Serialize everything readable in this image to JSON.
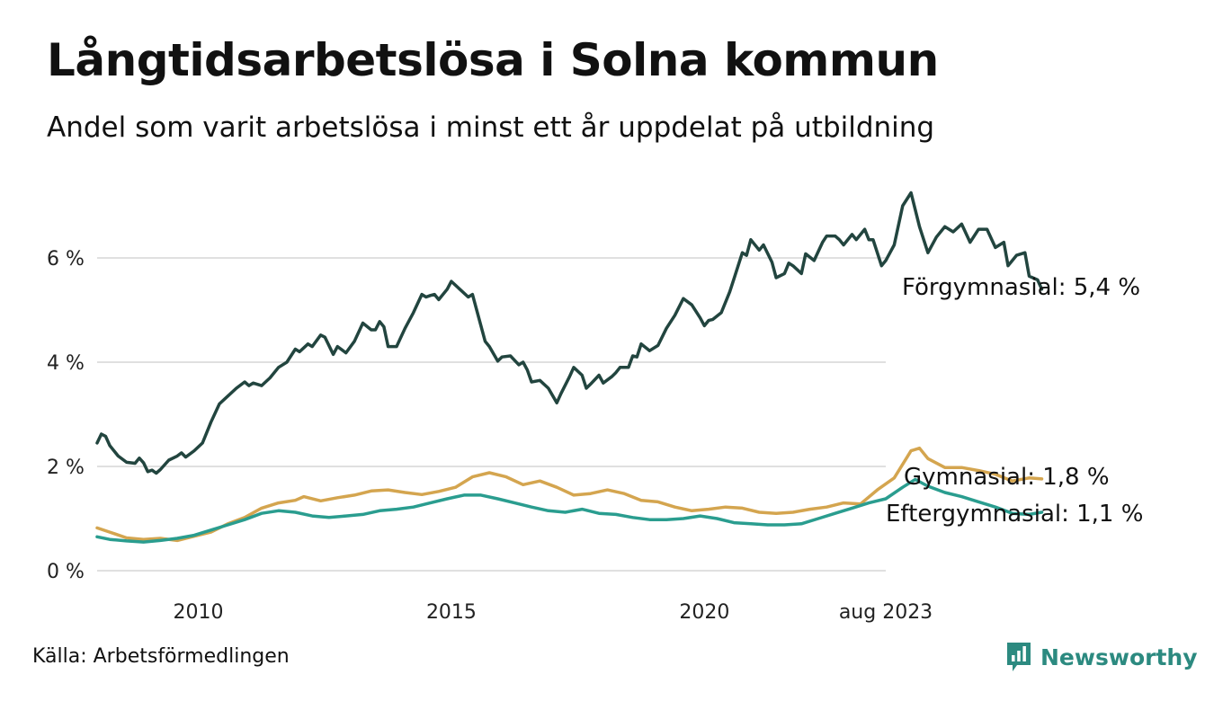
{
  "header": {
    "title": "Långtidsarbetslösa i Solna kommun",
    "subtitle": "Andel som varit arbetslösa i minst ett år uppdelat på utbildning"
  },
  "footer": {
    "source": "Källa: Arbetsförmedlingen",
    "brand": "Newsworthy"
  },
  "icons": {
    "brand": "newsworthy-logo-icon"
  },
  "chart_data": {
    "type": "line",
    "x_start": "2008-01",
    "x_end": "2023-08",
    "ylim": [
      0,
      7.5
    ],
    "y_ticks": [
      {
        "value": 0,
        "label": "0 %"
      },
      {
        "value": 2,
        "label": "2 %"
      },
      {
        "value": 4,
        "label": "4 %"
      },
      {
        "value": 6,
        "label": "6 %"
      }
    ],
    "x_ticks": [
      {
        "date": "2010-01",
        "label": "2010"
      },
      {
        "date": "2015-01",
        "label": "2015"
      },
      {
        "date": "2020-01",
        "label": "2020"
      },
      {
        "date": "2023-08",
        "label": "aug 2023"
      }
    ],
    "grid": "horizontal",
    "legend": "end-of-line labels",
    "series": [
      {
        "name": "Förgymnasial",
        "end_label": "Förgymnasial: 5,4 %",
        "color": "#22453f",
        "points": [
          [
            "2008-01",
            2.45
          ],
          [
            "2008-02",
            2.62
          ],
          [
            "2008-03",
            2.58
          ],
          [
            "2008-04",
            2.4
          ],
          [
            "2008-06",
            2.2
          ],
          [
            "2008-08",
            2.08
          ],
          [
            "2008-10",
            2.06
          ],
          [
            "2008-11",
            2.16
          ],
          [
            "2008-12",
            2.07
          ],
          [
            "2009-01",
            1.9
          ],
          [
            "2009-02",
            1.93
          ],
          [
            "2009-03",
            1.87
          ],
          [
            "2009-04",
            1.94
          ],
          [
            "2009-06",
            2.12
          ],
          [
            "2009-08",
            2.2
          ],
          [
            "2009-09",
            2.26
          ],
          [
            "2009-10",
            2.18
          ],
          [
            "2009-12",
            2.3
          ],
          [
            "2010-02",
            2.45
          ],
          [
            "2010-04",
            2.85
          ],
          [
            "2010-06",
            3.2
          ],
          [
            "2010-08",
            3.35
          ],
          [
            "2010-10",
            3.5
          ],
          [
            "2010-12",
            3.62
          ],
          [
            "2011-01",
            3.55
          ],
          [
            "2011-02",
            3.6
          ],
          [
            "2011-04",
            3.55
          ],
          [
            "2011-06",
            3.7
          ],
          [
            "2011-08",
            3.9
          ],
          [
            "2011-10",
            4.0
          ],
          [
            "2011-12",
            4.25
          ],
          [
            "2012-01",
            4.2
          ],
          [
            "2012-03",
            4.35
          ],
          [
            "2012-04",
            4.3
          ],
          [
            "2012-06",
            4.52
          ],
          [
            "2012-07",
            4.48
          ],
          [
            "2012-09",
            4.15
          ],
          [
            "2012-10",
            4.3
          ],
          [
            "2012-12",
            4.18
          ],
          [
            "2013-02",
            4.4
          ],
          [
            "2013-04",
            4.75
          ],
          [
            "2013-06",
            4.62
          ],
          [
            "2013-07",
            4.62
          ],
          [
            "2013-08",
            4.78
          ],
          [
            "2013-09",
            4.68
          ],
          [
            "2013-10",
            4.3
          ],
          [
            "2013-12",
            4.3
          ],
          [
            "2014-02",
            4.65
          ],
          [
            "2014-04",
            4.95
          ],
          [
            "2014-06",
            5.3
          ],
          [
            "2014-07",
            5.25
          ],
          [
            "2014-08",
            5.28
          ],
          [
            "2014-09",
            5.3
          ],
          [
            "2014-10",
            5.2
          ],
          [
            "2014-12",
            5.4
          ],
          [
            "2015-01",
            5.55
          ],
          [
            "2015-03",
            5.4
          ],
          [
            "2015-05",
            5.25
          ],
          [
            "2015-06",
            5.3
          ],
          [
            "2015-07",
            5.0
          ],
          [
            "2015-09",
            4.4
          ],
          [
            "2015-10",
            4.3
          ],
          [
            "2015-12",
            4.02
          ],
          [
            "2016-01",
            4.1
          ],
          [
            "2016-03",
            4.12
          ],
          [
            "2016-05",
            3.95
          ],
          [
            "2016-06",
            4.0
          ],
          [
            "2016-07",
            3.85
          ],
          [
            "2016-08",
            3.62
          ],
          [
            "2016-10",
            3.65
          ],
          [
            "2016-12",
            3.5
          ],
          [
            "2017-02",
            3.22
          ],
          [
            "2017-03",
            3.4
          ],
          [
            "2017-05",
            3.72
          ],
          [
            "2017-06",
            3.9
          ],
          [
            "2017-08",
            3.75
          ],
          [
            "2017-09",
            3.5
          ],
          [
            "2017-10",
            3.58
          ],
          [
            "2017-12",
            3.75
          ],
          [
            "2018-01",
            3.6
          ],
          [
            "2018-03",
            3.72
          ],
          [
            "2018-04",
            3.8
          ],
          [
            "2018-05",
            3.9
          ],
          [
            "2018-07",
            3.9
          ],
          [
            "2018-08",
            4.12
          ],
          [
            "2018-09",
            4.1
          ],
          [
            "2018-10",
            4.35
          ],
          [
            "2018-12",
            4.22
          ],
          [
            "2019-02",
            4.32
          ],
          [
            "2019-04",
            4.65
          ],
          [
            "2019-06",
            4.9
          ],
          [
            "2019-08",
            5.22
          ],
          [
            "2019-10",
            5.1
          ],
          [
            "2019-12",
            4.85
          ],
          [
            "2020-01",
            4.7
          ],
          [
            "2020-02",
            4.8
          ],
          [
            "2020-03",
            4.82
          ],
          [
            "2020-05",
            4.95
          ],
          [
            "2020-07",
            5.35
          ],
          [
            "2020-08",
            5.6
          ],
          [
            "2020-10",
            6.1
          ],
          [
            "2020-11",
            6.05
          ],
          [
            "2020-12",
            6.35
          ],
          [
            "2021-02",
            6.15
          ],
          [
            "2021-03",
            6.25
          ],
          [
            "2021-05",
            5.92
          ],
          [
            "2021-06",
            5.62
          ],
          [
            "2021-08",
            5.7
          ],
          [
            "2021-09",
            5.9
          ],
          [
            "2021-10",
            5.85
          ],
          [
            "2021-12",
            5.7
          ],
          [
            "2022-01",
            6.08
          ],
          [
            "2022-03",
            5.95
          ],
          [
            "2022-05",
            6.3
          ],
          [
            "2022-06",
            6.42
          ],
          [
            "2022-08",
            6.42
          ],
          [
            "2022-09",
            6.35
          ],
          [
            "2022-10",
            6.25
          ],
          [
            "2022-12",
            6.45
          ],
          [
            "2023-01",
            6.35
          ],
          [
            "2023-03",
            6.55
          ],
          [
            "2023-04",
            6.35
          ],
          [
            "2023-05",
            6.35
          ],
          [
            "2023-06",
            6.1
          ],
          [
            "2023-07",
            5.85
          ],
          [
            "2023-08",
            5.95
          ],
          [
            "2023-10",
            6.25
          ],
          [
            "2023-12",
            7.0
          ],
          [
            "2024-02",
            7.25
          ],
          [
            "2024-04",
            6.6
          ],
          [
            "2024-06",
            6.1
          ],
          [
            "2024-08",
            6.4
          ],
          [
            "2024-10",
            6.6
          ],
          [
            "2024-12",
            6.5
          ],
          [
            "2025-02",
            6.65
          ],
          [
            "2025-04",
            6.3
          ],
          [
            "2025-06",
            6.55
          ],
          [
            "2025-08",
            6.55
          ],
          [
            "2025-10",
            6.2
          ],
          [
            "2025-12",
            6.3
          ],
          [
            "2026-01",
            5.85
          ],
          [
            "2026-03",
            6.05
          ],
          [
            "2026-05",
            6.1
          ],
          [
            "2026-06",
            5.65
          ],
          [
            "2026-08",
            5.58
          ],
          [
            "2026-09",
            5.4
          ]
        ]
      },
      {
        "name": "Gymnasial",
        "end_label": "Gymnasial: 1,8 %",
        "color": "#d4a54f",
        "points": [
          [
            "2008-01",
            0.82
          ],
          [
            "2008-04",
            0.74
          ],
          [
            "2008-08",
            0.63
          ],
          [
            "2008-12",
            0.6
          ],
          [
            "2009-04",
            0.62
          ],
          [
            "2009-08",
            0.58
          ],
          [
            "2009-12",
            0.66
          ],
          [
            "2010-04",
            0.74
          ],
          [
            "2010-08",
            0.9
          ],
          [
            "2010-12",
            1.02
          ],
          [
            "2011-04",
            1.2
          ],
          [
            "2011-08",
            1.3
          ],
          [
            "2011-12",
            1.35
          ],
          [
            "2012-02",
            1.42
          ],
          [
            "2012-06",
            1.34
          ],
          [
            "2012-10",
            1.4
          ],
          [
            "2013-02",
            1.45
          ],
          [
            "2013-06",
            1.53
          ],
          [
            "2013-10",
            1.55
          ],
          [
            "2014-02",
            1.5
          ],
          [
            "2014-06",
            1.46
          ],
          [
            "2014-10",
            1.52
          ],
          [
            "2015-02",
            1.6
          ],
          [
            "2015-06",
            1.8
          ],
          [
            "2015-10",
            1.88
          ],
          [
            "2016-02",
            1.8
          ],
          [
            "2016-06",
            1.65
          ],
          [
            "2016-10",
            1.72
          ],
          [
            "2017-02",
            1.6
          ],
          [
            "2017-06",
            1.45
          ],
          [
            "2017-10",
            1.48
          ],
          [
            "2018-02",
            1.55
          ],
          [
            "2018-06",
            1.48
          ],
          [
            "2018-10",
            1.35
          ],
          [
            "2019-02",
            1.32
          ],
          [
            "2019-06",
            1.22
          ],
          [
            "2019-10",
            1.15
          ],
          [
            "2020-02",
            1.18
          ],
          [
            "2020-06",
            1.22
          ],
          [
            "2020-10",
            1.2
          ],
          [
            "2021-02",
            1.12
          ],
          [
            "2021-06",
            1.1
          ],
          [
            "2021-10",
            1.12
          ],
          [
            "2022-02",
            1.18
          ],
          [
            "2022-06",
            1.22
          ],
          [
            "2022-10",
            1.3
          ],
          [
            "2023-02",
            1.28
          ],
          [
            "2023-06",
            1.55
          ],
          [
            "2023-10",
            1.78
          ],
          [
            "2024-02",
            2.3
          ],
          [
            "2024-04",
            2.35
          ],
          [
            "2024-06",
            2.15
          ],
          [
            "2024-10",
            1.98
          ],
          [
            "2025-02",
            1.98
          ],
          [
            "2025-06",
            1.92
          ],
          [
            "2025-10",
            1.85
          ],
          [
            "2026-02",
            1.72
          ],
          [
            "2026-06",
            1.78
          ],
          [
            "2026-09",
            1.76
          ]
        ]
      },
      {
        "name": "Eftergymnasial",
        "end_label": "Eftergymnasial: 1,1 %",
        "color": "#2a9d8f",
        "points": [
          [
            "2008-01",
            0.65
          ],
          [
            "2008-04",
            0.6
          ],
          [
            "2008-08",
            0.57
          ],
          [
            "2008-12",
            0.55
          ],
          [
            "2009-04",
            0.58
          ],
          [
            "2009-08",
            0.62
          ],
          [
            "2009-12",
            0.68
          ],
          [
            "2010-04",
            0.78
          ],
          [
            "2010-08",
            0.88
          ],
          [
            "2010-12",
            0.98
          ],
          [
            "2011-04",
            1.1
          ],
          [
            "2011-08",
            1.15
          ],
          [
            "2011-12",
            1.12
          ],
          [
            "2012-04",
            1.05
          ],
          [
            "2012-08",
            1.02
          ],
          [
            "2012-12",
            1.05
          ],
          [
            "2013-04",
            1.08
          ],
          [
            "2013-08",
            1.15
          ],
          [
            "2013-12",
            1.18
          ],
          [
            "2014-04",
            1.22
          ],
          [
            "2014-08",
            1.3
          ],
          [
            "2014-12",
            1.38
          ],
          [
            "2015-04",
            1.45
          ],
          [
            "2015-08",
            1.45
          ],
          [
            "2015-12",
            1.38
          ],
          [
            "2016-04",
            1.3
          ],
          [
            "2016-08",
            1.22
          ],
          [
            "2016-12",
            1.15
          ],
          [
            "2017-04",
            1.12
          ],
          [
            "2017-08",
            1.18
          ],
          [
            "2017-12",
            1.1
          ],
          [
            "2018-04",
            1.08
          ],
          [
            "2018-08",
            1.02
          ],
          [
            "2018-12",
            0.98
          ],
          [
            "2019-04",
            0.98
          ],
          [
            "2019-08",
            1.0
          ],
          [
            "2019-12",
            1.05
          ],
          [
            "2020-04",
            1.0
          ],
          [
            "2020-08",
            0.92
          ],
          [
            "2020-12",
            0.9
          ],
          [
            "2021-04",
            0.88
          ],
          [
            "2021-08",
            0.88
          ],
          [
            "2021-12",
            0.9
          ],
          [
            "2022-04",
            1.0
          ],
          [
            "2022-08",
            1.1
          ],
          [
            "2022-12",
            1.2
          ],
          [
            "2023-04",
            1.3
          ],
          [
            "2023-08",
            1.38
          ],
          [
            "2023-12",
            1.6
          ],
          [
            "2024-03",
            1.75
          ],
          [
            "2024-06",
            1.62
          ],
          [
            "2024-10",
            1.5
          ],
          [
            "2025-02",
            1.42
          ],
          [
            "2025-06",
            1.32
          ],
          [
            "2025-10",
            1.22
          ],
          [
            "2026-02",
            1.1
          ],
          [
            "2026-06",
            1.08
          ],
          [
            "2026-09",
            1.12
          ]
        ]
      }
    ]
  }
}
